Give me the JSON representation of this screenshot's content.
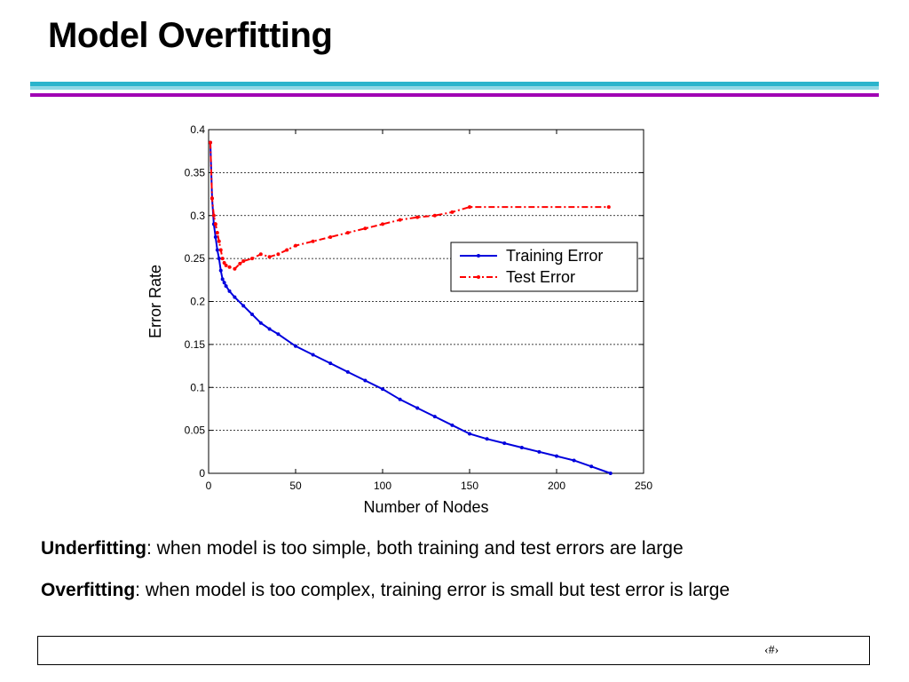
{
  "slide": {
    "title": "Model Overfitting",
    "slide_number": "‹#›",
    "accent_colors": {
      "teal": "#2bb4cc",
      "magenta": "#a000b4"
    }
  },
  "captions": [
    {
      "term": "Underfitting",
      "text": ": when model is too simple, both training and test errors are large"
    },
    {
      "term": "Overfitting",
      "text": ": when model is too complex, training error is small but test error is large"
    }
  ],
  "chart_data": {
    "type": "line",
    "title": "",
    "xlabel": "Number of Nodes",
    "ylabel": "Error Rate",
    "xlim": [
      0,
      250
    ],
    "ylim": [
      0,
      0.4
    ],
    "xticks": [
      0,
      50,
      100,
      150,
      200,
      250
    ],
    "yticks": [
      0,
      0.05,
      0.1,
      0.15,
      0.2,
      0.25,
      0.3,
      0.35,
      0.4
    ],
    "grid": "horizontal dashed",
    "legend_position": "right-center",
    "series": [
      {
        "name": "Training Error",
        "color": "#0000dd",
        "style": "solid",
        "x": [
          1,
          2,
          3,
          4,
          5,
          6,
          7,
          8,
          9,
          10,
          12,
          15,
          20,
          25,
          30,
          35,
          40,
          50,
          60,
          70,
          80,
          90,
          100,
          110,
          120,
          130,
          140,
          150,
          160,
          170,
          180,
          190,
          200,
          210,
          220,
          231
        ],
        "y": [
          0.385,
          0.32,
          0.29,
          0.275,
          0.26,
          0.25,
          0.236,
          0.226,
          0.222,
          0.218,
          0.212,
          0.205,
          0.195,
          0.185,
          0.175,
          0.168,
          0.162,
          0.148,
          0.138,
          0.128,
          0.118,
          0.108,
          0.098,
          0.086,
          0.076,
          0.066,
          0.056,
          0.046,
          0.04,
          0.035,
          0.03,
          0.025,
          0.02,
          0.015,
          0.008,
          0.0
        ]
      },
      {
        "name": "Test Error",
        "color": "#ff0000",
        "style": "dash-dot",
        "x": [
          1,
          2,
          3,
          4,
          5,
          6,
          7,
          8,
          9,
          10,
          12,
          15,
          18,
          20,
          25,
          30,
          35,
          40,
          45,
          50,
          60,
          70,
          80,
          90,
          100,
          110,
          120,
          130,
          140,
          150,
          230
        ],
        "y": [
          0.385,
          0.32,
          0.3,
          0.29,
          0.28,
          0.27,
          0.26,
          0.25,
          0.245,
          0.242,
          0.24,
          0.238,
          0.244,
          0.247,
          0.25,
          0.255,
          0.252,
          0.255,
          0.26,
          0.265,
          0.27,
          0.275,
          0.28,
          0.285,
          0.29,
          0.295,
          0.298,
          0.3,
          0.304,
          0.31,
          0.31
        ]
      }
    ]
  }
}
